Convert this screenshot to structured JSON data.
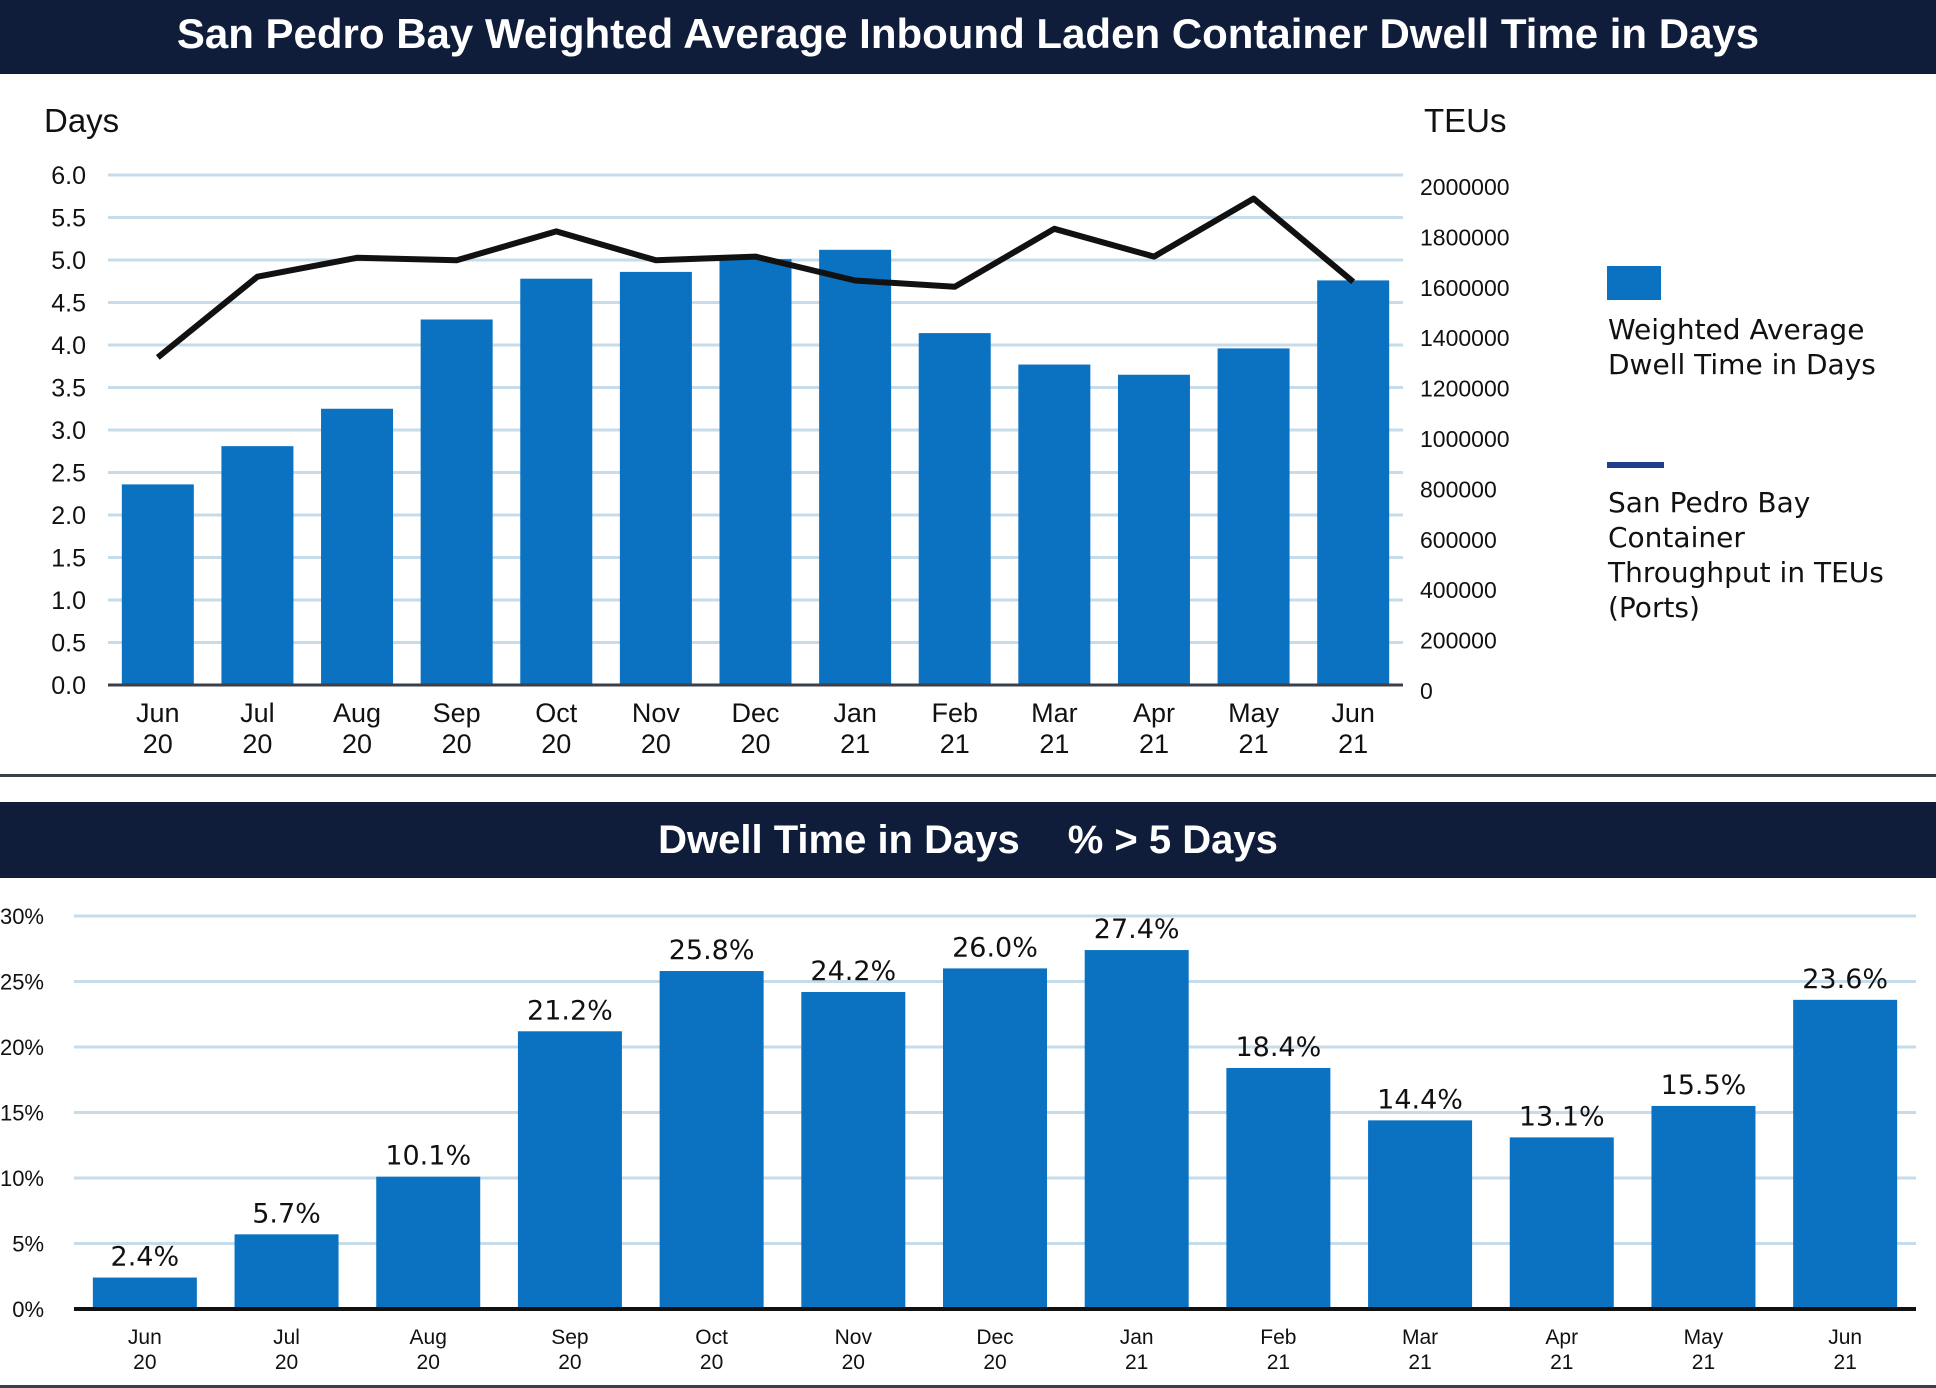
{
  "title": "San Pedro Bay Weighted Average Inbound Laden Container Dwell Time in Days",
  "chart_data": [
    {
      "type": "bar+line",
      "categories": [
        [
          "Jun",
          "20"
        ],
        [
          "Jul",
          "20"
        ],
        [
          "Aug",
          "20"
        ],
        [
          "Sep",
          "20"
        ],
        [
          "Oct",
          "20"
        ],
        [
          "Nov",
          "20"
        ],
        [
          "Dec",
          "20"
        ],
        [
          "Jan",
          "21"
        ],
        [
          "Feb",
          "21"
        ],
        [
          "Mar",
          "21"
        ],
        [
          "Apr",
          "21"
        ],
        [
          "May",
          "21"
        ],
        [
          "Jun",
          "21"
        ]
      ],
      "left_axis": {
        "label": "Days",
        "ylim": [
          0,
          6
        ],
        "ticks": [
          "0.0",
          "0.5",
          "1.0",
          "1.5",
          "2.0",
          "2.5",
          "3.0",
          "3.5",
          "4.0",
          "4.5",
          "5.0",
          "5.5",
          "6.0"
        ]
      },
      "right_axis": {
        "label": "TEUs",
        "ylim": [
          0,
          2000000
        ],
        "ticks": [
          "0",
          "200000",
          "400000",
          "600000",
          "800000",
          "1000000",
          "1200000",
          "1400000",
          "1600000",
          "1800000",
          "2000000"
        ]
      },
      "series": [
        {
          "name": "Weighted Average Dwell Time in Days",
          "type": "bar",
          "axis": "left",
          "color": "#0a72c1",
          "values": [
            2.36,
            2.81,
            3.25,
            4.3,
            4.78,
            4.86,
            5.01,
            5.12,
            4.14,
            3.77,
            3.65,
            3.96,
            4.76
          ]
        },
        {
          "name": "San Pedro Bay Container Throughput in TEUs (Ports)",
          "type": "line",
          "axis": "right",
          "color": "#111111",
          "values": [
            1320000,
            1640000,
            1715000,
            1705000,
            1820000,
            1705000,
            1720000,
            1625000,
            1600000,
            1830000,
            1720000,
            1950000,
            1620000
          ]
        }
      ],
      "grid": true,
      "legend_position": "right"
    },
    {
      "type": "bar",
      "title": "Dwell Time in Days",
      "subtitle": "% > 5 Days",
      "categories": [
        [
          "Jun",
          "20"
        ],
        [
          "Jul",
          "20"
        ],
        [
          "Aug",
          "20"
        ],
        [
          "Sep",
          "20"
        ],
        [
          "Oct",
          "20"
        ],
        [
          "Nov",
          "20"
        ],
        [
          "Dec",
          "20"
        ],
        [
          "Jan",
          "21"
        ],
        [
          "Feb",
          "21"
        ],
        [
          "Mar",
          "21"
        ],
        [
          "Apr",
          "21"
        ],
        [
          "May",
          "21"
        ],
        [
          "Jun",
          "21"
        ]
      ],
      "values": [
        2.4,
        5.7,
        10.1,
        21.2,
        25.8,
        24.2,
        26.0,
        27.4,
        18.4,
        14.4,
        13.1,
        15.5,
        23.6
      ],
      "data_labels": [
        "2.4%",
        "5.7%",
        "10.1%",
        "21.2%",
        "25.8%",
        "24.2%",
        "26.0%",
        "27.4%",
        "18.4%",
        "14.4%",
        "13.1%",
        "15.5%",
        "23.6%"
      ],
      "ylim": [
        0,
        30
      ],
      "y_ticks": [
        "0%",
        "5%",
        "10%",
        "15%",
        "20%",
        "25%",
        "30%"
      ],
      "color": "#0a72c1",
      "grid": true
    }
  ]
}
